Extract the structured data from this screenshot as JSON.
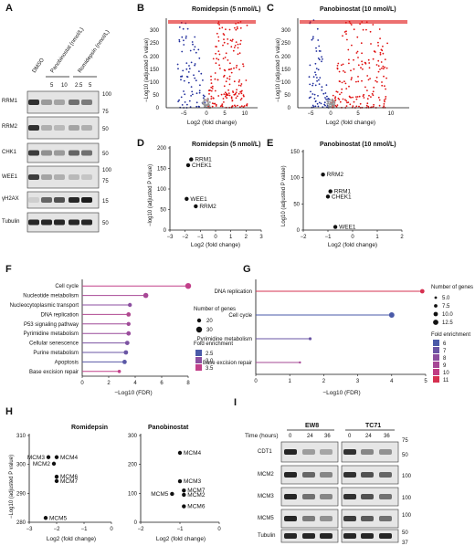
{
  "panels": {
    "A": "A",
    "B": "B",
    "C": "C",
    "D": "D",
    "E": "E",
    "F": "F",
    "G": "G",
    "H": "H",
    "I": "I"
  },
  "blot_a": {
    "headers": {
      "dmso": "DMSO",
      "pano": "Panobinostat (nmol/L)",
      "romi": "Romidepsin (nmol/L)"
    },
    "concentrations": [
      "5",
      "10",
      "2.5",
      "5"
    ],
    "rows": [
      "RRM1",
      "RRM2",
      "CHK1",
      "WEE1",
      "γH2AX",
      "Tubulin"
    ],
    "markers": [
      "100",
      "75",
      "50",
      "50",
      "100",
      "75",
      "15",
      "50"
    ]
  },
  "volcano": {
    "ylabel": "−Log10 (adjusted P value)",
    "xlabel": "Log2 (fold change)",
    "B": {
      "title": "Romidepsin (5 nmol/L)",
      "yticks": [
        "0",
        "50",
        "100",
        "150",
        "200",
        "250",
        "300"
      ],
      "xticks": [
        "−5",
        "0",
        "5",
        "10"
      ]
    },
    "C": {
      "title": "Panobinostat (10 nmol/L)",
      "yticks": [
        "0",
        "50",
        "100",
        "150",
        "200",
        "250",
        "300"
      ],
      "xticks": [
        "−5",
        "0",
        "5",
        "10"
      ]
    }
  },
  "chart_data": [
    {
      "type": "scatter",
      "title": "Romidepsin (5 nmol/L)",
      "xlabel": "Log2 (fold change)",
      "ylabel": "−log10 (adjusted P value)",
      "xlim": [
        -3,
        3
      ],
      "ylim": [
        0,
        200
      ],
      "xticks": [
        "−3",
        "−2",
        "−1",
        "0",
        "1",
        "2",
        "3"
      ],
      "yticks": [
        "0",
        "50",
        "100",
        "150",
        "200"
      ],
      "points": [
        {
          "label": "RRM1",
          "x": -1.6,
          "y": 172
        },
        {
          "label": "CHEK1",
          "x": -1.8,
          "y": 158
        },
        {
          "label": "WEE1",
          "x": -1.9,
          "y": 76
        },
        {
          "label": "RRM2",
          "x": -1.3,
          "y": 58
        }
      ]
    },
    {
      "type": "scatter",
      "title": "Panobinostat (10 nmol/L)",
      "xlabel": "Log2 (fold change)",
      "ylabel": "Log10 (adjusted P value)",
      "xlim": [
        -2,
        2
      ],
      "ylim": [
        0,
        150
      ],
      "xticks": [
        "−2",
        "−1",
        "0",
        "1",
        "2"
      ],
      "yticks": [
        "0",
        "50",
        "100",
        "150"
      ],
      "points": [
        {
          "label": "RRM2",
          "x": -1.2,
          "y": 106
        },
        {
          "label": "RRM1",
          "x": -0.9,
          "y": 74
        },
        {
          "label": "CHEK1",
          "x": -1.0,
          "y": 64
        },
        {
          "label": "WEE1",
          "x": -0.7,
          "y": 6
        }
      ]
    },
    {
      "type": "scatter",
      "title": "",
      "xlabel": "−Log10 (FDR)",
      "ylabel": "",
      "xlim": [
        0,
        8
      ],
      "xticks": [
        "0",
        "2",
        "4",
        "6",
        "8"
      ],
      "categories": [
        "Cell cycle",
        "Nucleotide metabolism",
        "Nucleocytoplasmic transport",
        "DNA replication",
        "P53 signaling pathway",
        "Pyrimidine metabolism",
        "Cellular senescence",
        "Purine metabolism",
        "Apoptosis",
        "Base excision repair"
      ],
      "values": [
        8.0,
        4.8,
        3.6,
        3.5,
        3.5,
        3.5,
        3.4,
        3.3,
        3.2,
        2.8
      ],
      "legend": {
        "size_title": "Number of genes",
        "sizes": [
          "20",
          "30"
        ],
        "color_title": "Fold enrichment",
        "colors": [
          "2.5",
          "3.0",
          "3.5"
        ]
      }
    },
    {
      "type": "scatter",
      "title": "",
      "xlabel": "−Log10 (FDR)",
      "ylabel": "",
      "xlim": [
        0,
        5
      ],
      "xticks": [
        "0",
        "1",
        "2",
        "3",
        "4",
        "5"
      ],
      "categories": [
        "DNA replication",
        "Cell cycle",
        "Pyrimidine metabolism",
        "Base excision repair"
      ],
      "values": [
        4.9,
        4.0,
        1.6,
        1.3
      ],
      "legend": {
        "size_title": "Number of genes",
        "sizes": [
          "5.0",
          "7.5",
          "10.0",
          "12.5"
        ],
        "color_title": "Fold enrichment",
        "colors": [
          "6",
          "7",
          "8",
          "9",
          "10",
          "11"
        ]
      }
    },
    {
      "type": "scatter",
      "title": "Romidepsin",
      "xlabel": "Log2 (fold change)",
      "ylabel": "−Log10 (adjusted P value)",
      "xlim": [
        -3,
        0
      ],
      "ylim": [
        270,
        310
      ],
      "xticks": [
        "−3",
        "−2",
        "−1",
        "0"
      ],
      "yticks": [
        "280",
        "290",
        "300",
        "310"
      ],
      "points": [
        {
          "label": "MCM3",
          "x": -2.3,
          "y": 300
        },
        {
          "label": "MCM4",
          "x": -2.0,
          "y": 300
        },
        {
          "label": "MCM2",
          "x": -2.1,
          "y": 297
        },
        {
          "label": "MCM6",
          "x": -2.0,
          "y": 291
        },
        {
          "label": "MCM7",
          "x": -2.0,
          "y": 289
        },
        {
          "label": "MCM5",
          "x": -2.4,
          "y": 272
        }
      ]
    },
    {
      "type": "scatter",
      "title": "Panobinostat",
      "xlabel": "Log2 (fold change)",
      "ylabel": "",
      "xlim": [
        -2,
        0
      ],
      "ylim": [
        0,
        300
      ],
      "xticks": [
        "−2",
        "−1",
        "0"
      ],
      "yticks": [
        "0",
        "100",
        "200",
        "300"
      ],
      "points": [
        {
          "label": "MCM4",
          "x": -1.0,
          "y": 240
        },
        {
          "label": "MCM3",
          "x": -1.0,
          "y": 142
        },
        {
          "label": "MCM7",
          "x": -0.9,
          "y": 110
        },
        {
          "label": "MCM5",
          "x": -1.2,
          "y": 98
        },
        {
          "label": "MCM2",
          "x": -0.9,
          "y": 95
        },
        {
          "label": "MCM6",
          "x": -0.9,
          "y": 55
        }
      ]
    }
  ],
  "blot_i": {
    "time_label": "Time (hours)",
    "lines": [
      "EW8",
      "TC71"
    ],
    "times": [
      "0",
      "24",
      "36",
      "0",
      "24",
      "36"
    ],
    "rows": [
      "CDT1",
      "MCM2",
      "MCM3",
      "MCM5",
      "Tubulin"
    ],
    "markers": [
      "75",
      "50",
      "100",
      "100",
      "100",
      "50",
      "37"
    ]
  }
}
